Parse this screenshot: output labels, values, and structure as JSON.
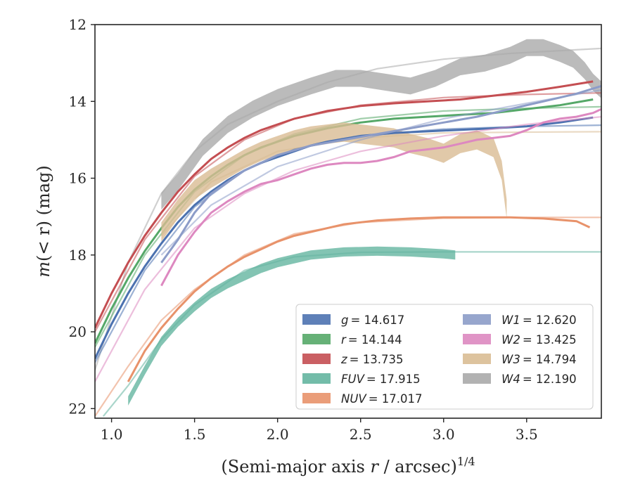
{
  "chart_data": {
    "type": "line",
    "xlabel": "(Semi-major axis r / arcsec)",
    "xlabel_main": "(Semi-major axis ",
    "xlabel_var": "r",
    "xlabel_rest": " / arcsec)",
    "xlabel_exp": "1/4",
    "ylabel_var": "m",
    "ylabel_expr": "(< r)",
    "ylabel_unit": " (mag)",
    "xlim": [
      0.9,
      3.95
    ],
    "ylim": [
      22.25,
      12.0
    ],
    "y_inverted": true,
    "xticks": [
      "1.0",
      "1.5",
      "2.0",
      "2.5",
      "3.0",
      "3.5"
    ],
    "yticks": [
      "12",
      "14",
      "16",
      "18",
      "20",
      "22"
    ],
    "grid": false,
    "legend_position": "lower-right",
    "legend": [
      {
        "label": "g",
        "value": "= 14.617",
        "color": "#4c72b0"
      },
      {
        "label": "r",
        "value": "= 14.144",
        "color": "#55a868"
      },
      {
        "label": "z",
        "value": "= 13.735",
        "color": "#c44e52"
      },
      {
        "label": "FUV",
        "value": "= 17.915",
        "color": "#64b5a0"
      },
      {
        "label": "NUV",
        "value": "= 17.017",
        "color": "#e8926a"
      },
      {
        "label": "W1",
        "value": "= 12.620",
        "color": "#8c9cc8"
      },
      {
        "label": "W2",
        "value": "= 13.425",
        "color": "#dd88c0"
      },
      {
        "label": "W3",
        "value": "= 14.794",
        "color": "#d9bc93"
      },
      {
        "label": "W4",
        "value": "= 12.190",
        "color": "#aaaaaa"
      }
    ],
    "series": [
      {
        "name": "W4",
        "color": "#aaaaaa",
        "band": 0.22,
        "x": [
          1.3,
          1.4,
          1.55,
          1.7,
          1.85,
          2.0,
          2.2,
          2.35,
          2.5,
          2.65,
          2.8,
          2.95,
          3.1,
          3.25,
          3.4,
          3.5,
          3.6,
          3.7,
          3.78,
          3.85,
          3.9,
          3.95
        ],
        "y": [
          16.6,
          16.1,
          15.2,
          14.6,
          14.2,
          13.9,
          13.6,
          13.4,
          13.4,
          13.5,
          13.6,
          13.4,
          13.1,
          13.0,
          12.8,
          12.6,
          12.6,
          12.75,
          12.9,
          13.2,
          13.5,
          13.7
        ]
      },
      {
        "name": "W4 model",
        "color": "#aaaaaa",
        "model": true,
        "x": [
          0.9,
          1.1,
          1.3,
          1.5,
          1.7,
          2.0,
          2.3,
          2.6,
          3.0,
          3.4,
          3.95
        ],
        "y": [
          21.0,
          18.2,
          16.4,
          15.3,
          14.6,
          14.0,
          13.5,
          13.15,
          12.9,
          12.75,
          12.62
        ]
      },
      {
        "name": "z",
        "color": "#c44e52",
        "x": [
          0.9,
          1.0,
          1.1,
          1.2,
          1.3,
          1.4,
          1.5,
          1.6,
          1.7,
          1.8,
          1.9,
          2.0,
          2.1,
          2.2,
          2.3,
          2.5,
          2.7,
          2.9,
          3.1,
          3.3,
          3.5,
          3.7,
          3.9
        ],
        "y": [
          19.9,
          19.0,
          18.2,
          17.5,
          16.9,
          16.35,
          15.9,
          15.5,
          15.2,
          14.95,
          14.75,
          14.6,
          14.45,
          14.35,
          14.25,
          14.12,
          14.05,
          14.0,
          13.95,
          13.85,
          13.75,
          13.62,
          13.48
        ]
      },
      {
        "name": "z model",
        "color": "#c44e52",
        "model": true,
        "x": [
          0.9,
          1.2,
          1.5,
          1.8,
          2.1,
          2.5,
          3.0,
          3.5,
          3.95
        ],
        "y": [
          20.0,
          17.6,
          15.95,
          15.0,
          14.45,
          14.1,
          13.9,
          13.82,
          13.78
        ]
      },
      {
        "name": "r",
        "color": "#55a868",
        "x": [
          0.9,
          1.0,
          1.1,
          1.2,
          1.3,
          1.4,
          1.5,
          1.6,
          1.7,
          1.8,
          1.9,
          2.0,
          2.1,
          2.2,
          2.3,
          2.5,
          2.7,
          2.9,
          3.1,
          3.3,
          3.5,
          3.7,
          3.9
        ],
        "y": [
          20.3,
          19.4,
          18.6,
          17.9,
          17.3,
          16.75,
          16.3,
          15.95,
          15.65,
          15.4,
          15.2,
          15.05,
          14.9,
          14.8,
          14.7,
          14.55,
          14.45,
          14.4,
          14.35,
          14.3,
          14.2,
          14.1,
          13.95
        ]
      },
      {
        "name": "r model",
        "color": "#55a868",
        "model": true,
        "x": [
          0.9,
          1.2,
          1.5,
          1.8,
          2.1,
          2.5,
          3.0,
          3.5,
          3.95
        ],
        "y": [
          20.4,
          18.0,
          16.35,
          15.4,
          14.85,
          14.45,
          14.25,
          14.18,
          14.14
        ]
      },
      {
        "name": "W3",
        "color": "#d9bc93",
        "band": 0.25,
        "x": [
          1.3,
          1.4,
          1.5,
          1.6,
          1.7,
          1.8,
          1.9,
          2.0,
          2.1,
          2.2,
          2.3,
          2.4,
          2.5,
          2.6,
          2.7,
          2.8,
          2.9,
          3.0,
          3.1,
          3.2,
          3.3,
          3.35,
          3.38
        ],
        "y": [
          17.4,
          16.8,
          16.3,
          16.0,
          15.75,
          15.5,
          15.3,
          15.15,
          15.0,
          14.9,
          14.85,
          14.8,
          14.85,
          14.9,
          14.95,
          15.1,
          15.2,
          15.35,
          15.1,
          15.0,
          15.2,
          15.8,
          16.8
        ]
      },
      {
        "name": "W3 model",
        "color": "#d9bc93",
        "model": true,
        "x": [
          1.3,
          1.6,
          2.0,
          2.5,
          3.0,
          3.5,
          3.95
        ],
        "y": [
          17.5,
          16.1,
          15.3,
          14.95,
          14.82,
          14.8,
          14.79
        ]
      },
      {
        "name": "g",
        "color": "#4c72b0",
        "x": [
          0.9,
          1.0,
          1.1,
          1.2,
          1.3,
          1.4,
          1.5,
          1.6,
          1.7,
          1.8,
          1.9,
          2.0,
          2.1,
          2.2,
          2.3,
          2.5,
          2.7,
          2.9,
          3.1,
          3.3,
          3.5,
          3.7,
          3.9
        ],
        "y": [
          20.7,
          19.8,
          19.0,
          18.3,
          17.7,
          17.15,
          16.7,
          16.35,
          16.05,
          15.8,
          15.6,
          15.45,
          15.3,
          15.15,
          15.05,
          14.9,
          14.82,
          14.78,
          14.74,
          14.7,
          14.65,
          14.55,
          14.42
        ]
      },
      {
        "name": "g model",
        "color": "#4c72b0",
        "model": true,
        "x": [
          0.9,
          1.2,
          1.5,
          1.8,
          2.1,
          2.5,
          3.0,
          3.5,
          3.95
        ],
        "y": [
          20.8,
          18.4,
          16.75,
          15.8,
          15.25,
          14.9,
          14.72,
          14.65,
          14.62
        ]
      },
      {
        "name": "W1",
        "color": "#8c9cc8",
        "x": [
          1.3,
          1.4,
          1.5,
          1.6,
          1.7,
          1.8,
          1.9,
          2.0,
          2.2,
          2.4,
          2.6,
          2.8,
          3.0,
          3.2,
          3.4,
          3.6,
          3.8,
          3.95
        ],
        "y": [
          18.2,
          17.6,
          16.9,
          16.4,
          16.1,
          15.8,
          15.6,
          15.4,
          15.15,
          15.0,
          14.85,
          14.7,
          14.55,
          14.4,
          14.2,
          14.0,
          13.8,
          13.6
        ]
      },
      {
        "name": "W1 model",
        "color": "#8c9cc8",
        "model": true,
        "x": [
          1.3,
          1.6,
          2.0,
          2.5,
          3.0,
          3.5,
          3.95
        ],
        "y": [
          18.0,
          16.7,
          15.7,
          15.0,
          14.45,
          14.05,
          13.7
        ]
      },
      {
        "name": "W2",
        "color": "#dd88c0",
        "x": [
          1.3,
          1.4,
          1.5,
          1.6,
          1.7,
          1.8,
          1.9,
          2.0,
          2.1,
          2.2,
          2.3,
          2.4,
          2.5,
          2.6,
          2.7,
          2.8,
          2.9,
          3.0,
          3.1,
          3.2,
          3.3,
          3.4,
          3.5,
          3.6,
          3.7,
          3.8,
          3.9,
          3.95
        ],
        "y": [
          18.8,
          18.0,
          17.4,
          16.9,
          16.6,
          16.35,
          16.15,
          16.05,
          15.9,
          15.75,
          15.65,
          15.6,
          15.6,
          15.55,
          15.45,
          15.3,
          15.25,
          15.2,
          15.1,
          15.0,
          14.95,
          14.9,
          14.75,
          14.55,
          14.45,
          14.4,
          14.3,
          14.2
        ]
      },
      {
        "name": "W2 model",
        "color": "#dd88c0",
        "model": true,
        "x": [
          0.9,
          1.2,
          1.5,
          1.8,
          2.1,
          2.5,
          3.0,
          3.5,
          3.95
        ],
        "y": [
          21.3,
          18.9,
          17.3,
          16.4,
          15.8,
          15.3,
          14.9,
          14.6,
          14.4
        ]
      },
      {
        "name": "NUV",
        "color": "#e8926a",
        "x": [
          1.1,
          1.2,
          1.3,
          1.4,
          1.5,
          1.6,
          1.7,
          1.8,
          1.9,
          2.0,
          2.1,
          2.2,
          2.4,
          2.6,
          2.8,
          3.0,
          3.2,
          3.4,
          3.6,
          3.8,
          3.88
        ],
        "y": [
          21.3,
          20.5,
          19.9,
          19.4,
          18.95,
          18.6,
          18.3,
          18.05,
          17.85,
          17.65,
          17.5,
          17.4,
          17.2,
          17.1,
          17.05,
          17.02,
          17.02,
          17.02,
          17.05,
          17.12,
          17.28
        ]
      },
      {
        "name": "NUV model",
        "color": "#e8926a",
        "model": true,
        "x": [
          0.9,
          1.1,
          1.3,
          1.5,
          1.8,
          2.1,
          2.5,
          3.0,
          3.5,
          3.95
        ],
        "y": [
          22.2,
          20.9,
          19.7,
          18.9,
          18.0,
          17.45,
          17.15,
          17.04,
          17.02,
          17.02
        ]
      },
      {
        "name": "FUV",
        "color": "#64b5a0",
        "band": 0.12,
        "x": [
          1.1,
          1.2,
          1.3,
          1.4,
          1.5,
          1.6,
          1.7,
          1.8,
          1.9,
          2.0,
          2.2,
          2.4,
          2.6,
          2.8,
          3.0,
          3.07
        ],
        "y": [
          21.8,
          21.0,
          20.25,
          19.75,
          19.35,
          19.0,
          18.75,
          18.55,
          18.35,
          18.2,
          18.0,
          17.92,
          17.9,
          17.92,
          17.97,
          18.0
        ]
      },
      {
        "name": "FUV model",
        "color": "#64b5a0",
        "model": true,
        "x": [
          0.95,
          1.1,
          1.3,
          1.5,
          1.8,
          2.1,
          2.5,
          3.0,
          3.5,
          3.95
        ],
        "y": [
          22.2,
          21.4,
          20.2,
          19.3,
          18.4,
          18.05,
          17.93,
          17.92,
          17.92,
          17.92
        ]
      }
    ]
  }
}
